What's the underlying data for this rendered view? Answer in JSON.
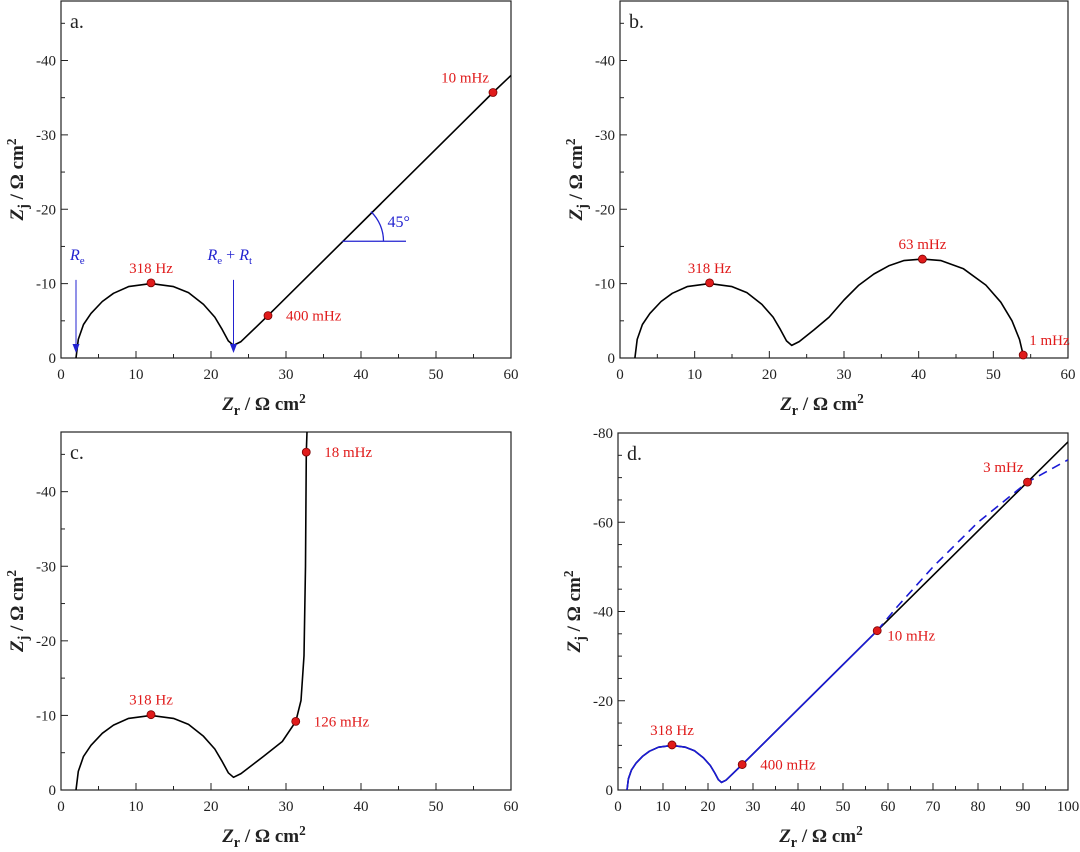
{
  "colors": {
    "curve": "#000000",
    "fit": "#1a1ad6",
    "marker": "#e01b1b",
    "annotation": "#2323d0"
  },
  "chart_data": [
    {
      "type": "line",
      "panel_label": "a.",
      "xlabel": {
        "main": "Z",
        "sub": "r",
        "rest": " / Ω cm",
        "sup": "2"
      },
      "ylabel": {
        "main": "Z",
        "sub": "j",
        "rest": " / Ω cm",
        "sup": "2"
      },
      "xlim": [
        0,
        60
      ],
      "ylim": [
        0,
        -48
      ],
      "xticks": [
        0,
        10,
        20,
        30,
        40,
        50,
        60
      ],
      "xminor": 5,
      "yticks": [
        0,
        -10,
        -20,
        -30,
        -40
      ],
      "yminor": 5,
      "series": [
        {
          "style": "solid",
          "color": "#000000",
          "x": [
            2,
            2.3,
            3,
            4,
            5.5,
            7,
            9,
            12,
            15,
            17,
            19,
            20.5,
            21.5,
            22.3,
            23,
            24,
            27.6,
            57.6,
            60
          ],
          "y": [
            0,
            -2.5,
            -4.5,
            -6,
            -7.6,
            -8.7,
            -9.6,
            -10,
            -9.6,
            -8.8,
            -7.2,
            -5.5,
            -3.8,
            -2.3,
            -1.7,
            -2.2,
            -5.7,
            -35.7,
            -38
          ]
        }
      ],
      "points": [
        {
          "x": 12,
          "y": -10.1,
          "label": "318 Hz",
          "pos": "above"
        },
        {
          "x": 27.6,
          "y": -5.7,
          "label": "400 mHz",
          "pos": "right"
        },
        {
          "x": 57.6,
          "y": -35.7,
          "label": "10 mHz",
          "pos": "left-above"
        }
      ],
      "annotations": {
        "re": {
          "label": "R",
          "sub": "e",
          "x": 2
        },
        "re_rt": {
          "label": "R",
          "sub": "e",
          "plus": " + ",
          "label2": "R",
          "sub2": "t",
          "x": 23
        },
        "angle": {
          "label": "45°",
          "x": 37.5,
          "y": -15.7
        }
      }
    },
    {
      "type": "line",
      "panel_label": "b.",
      "xlabel": {
        "main": "Z",
        "sub": "r",
        "rest": " / Ω cm",
        "sup": "2"
      },
      "ylabel": {
        "main": "Z",
        "sub": "j",
        "rest": " / Ω cm",
        "sup": "2"
      },
      "xlim": [
        0,
        60
      ],
      "ylim": [
        0,
        -48
      ],
      "xticks": [
        0,
        10,
        20,
        30,
        40,
        50,
        60
      ],
      "xminor": 5,
      "yticks": [
        0,
        -10,
        -20,
        -30,
        -40
      ],
      "yminor": 5,
      "series": [
        {
          "style": "solid",
          "color": "#000000",
          "x": [
            2,
            2.3,
            3,
            4,
            5.5,
            7,
            9,
            12,
            15,
            17,
            19,
            20.5,
            21.5,
            22.3,
            23,
            24,
            26,
            28,
            30,
            32,
            34,
            36,
            38,
            40.5,
            43,
            46,
            49,
            51,
            52.5,
            53.5,
            54
          ],
          "y": [
            0,
            -2.5,
            -4.5,
            -6,
            -7.6,
            -8.7,
            -9.6,
            -10,
            -9.6,
            -8.8,
            -7.2,
            -5.5,
            -3.8,
            -2.3,
            -1.7,
            -2.2,
            -3.8,
            -5.5,
            -7.8,
            -9.8,
            -11.3,
            -12.4,
            -13.1,
            -13.3,
            -13.1,
            -12,
            -9.8,
            -7.5,
            -5,
            -2.5,
            -0.4
          ]
        }
      ],
      "points": [
        {
          "x": 12,
          "y": -10.1,
          "label": "318 Hz",
          "pos": "above"
        },
        {
          "x": 40.5,
          "y": -13.3,
          "label": "63 mHz",
          "pos": "above"
        },
        {
          "x": 54,
          "y": -0.4,
          "label": "1 mHz",
          "pos": "right-above"
        }
      ]
    },
    {
      "type": "line",
      "panel_label": "c.",
      "xlabel": {
        "main": "Z",
        "sub": "r",
        "rest": " / Ω cm",
        "sup": "2"
      },
      "ylabel": {
        "main": "Z",
        "sub": "j",
        "rest": " / Ω cm",
        "sup": "2"
      },
      "xlim": [
        0,
        60
      ],
      "ylim": [
        0,
        -48
      ],
      "xticks": [
        0,
        10,
        20,
        30,
        40,
        50,
        60
      ],
      "xminor": 5,
      "yticks": [
        0,
        -10,
        -20,
        -30,
        -40
      ],
      "yminor": 5,
      "series": [
        {
          "style": "solid",
          "color": "#000000",
          "x": [
            2,
            2.3,
            3,
            4,
            5.5,
            7,
            9,
            12,
            15,
            17,
            19,
            20.5,
            21.5,
            22.3,
            23,
            24,
            27,
            29.5,
            31.3,
            32,
            32.4,
            32.6,
            32.7,
            32.8
          ],
          "y": [
            0,
            -2.5,
            -4.5,
            -6,
            -7.6,
            -8.7,
            -9.6,
            -10,
            -9.6,
            -8.8,
            -7.2,
            -5.5,
            -3.8,
            -2.3,
            -1.7,
            -2.2,
            -4.5,
            -6.5,
            -9.2,
            -12,
            -18,
            -30,
            -45.3,
            -48
          ]
        }
      ],
      "points": [
        {
          "x": 12,
          "y": -10.1,
          "label": "318 Hz",
          "pos": "above"
        },
        {
          "x": 31.3,
          "y": -9.2,
          "label": "126 mHz",
          "pos": "right"
        },
        {
          "x": 32.7,
          "y": -45.3,
          "label": "18 mHz",
          "pos": "right"
        }
      ]
    },
    {
      "type": "line",
      "panel_label": "d.",
      "xlabel": {
        "main": "Z",
        "sub": "r",
        "rest": " / Ω cm",
        "sup": "2"
      },
      "ylabel": {
        "main": "Z",
        "sub": "j",
        "rest": " / Ω cm",
        "sup": "2"
      },
      "xlim": [
        0,
        100
      ],
      "ylim": [
        0,
        -80
      ],
      "xticks": [
        0,
        10,
        20,
        30,
        40,
        50,
        60,
        70,
        80,
        90,
        100
      ],
      "xminor": 5,
      "yticks": [
        0,
        -20,
        -40,
        -60,
        -80
      ],
      "yminor": 5,
      "series": [
        {
          "style": "solid",
          "color": "#000000",
          "x": [
            2,
            2.3,
            3,
            4,
            5.5,
            7,
            9,
            12,
            15,
            17,
            19,
            20.5,
            21.5,
            22.3,
            23,
            24,
            27.6,
            57.6,
            100
          ],
          "y": [
            0,
            -2.5,
            -4.5,
            -6,
            -7.6,
            -8.7,
            -9.6,
            -10,
            -9.6,
            -8.8,
            -7.2,
            -5.5,
            -3.8,
            -2.3,
            -1.7,
            -2.2,
            -5.7,
            -35.7,
            -78
          ]
        },
        {
          "style": "solid",
          "color": "#1a1ad6",
          "x": [
            2,
            2.3,
            3,
            4,
            5.5,
            7,
            9,
            12,
            15,
            17,
            19,
            20.5,
            21.5,
            22.3,
            23,
            24,
            27.6,
            57.6
          ],
          "y": [
            0,
            -2.5,
            -4.5,
            -6,
            -7.6,
            -8.7,
            -9.6,
            -10,
            -9.6,
            -8.8,
            -7.2,
            -5.5,
            -3.8,
            -2.3,
            -1.7,
            -2.2,
            -5.7,
            -35.7
          ]
        },
        {
          "style": "dashed",
          "color": "#1a1ad6",
          "x": [
            57.6,
            62,
            70,
            80,
            91,
            100
          ],
          "y": [
            -35.7,
            -41,
            -50,
            -60,
            -69,
            -74
          ]
        }
      ],
      "points": [
        {
          "x": 12,
          "y": -10.1,
          "label": "318 Hz",
          "pos": "above"
        },
        {
          "x": 27.6,
          "y": -5.7,
          "label": "400 mHz",
          "pos": "right"
        },
        {
          "x": 57.6,
          "y": -35.7,
          "label": "10 mHz",
          "pos": "right-below"
        },
        {
          "x": 91,
          "y": -69,
          "label": "3 mHz",
          "pos": "left-above"
        }
      ]
    }
  ]
}
